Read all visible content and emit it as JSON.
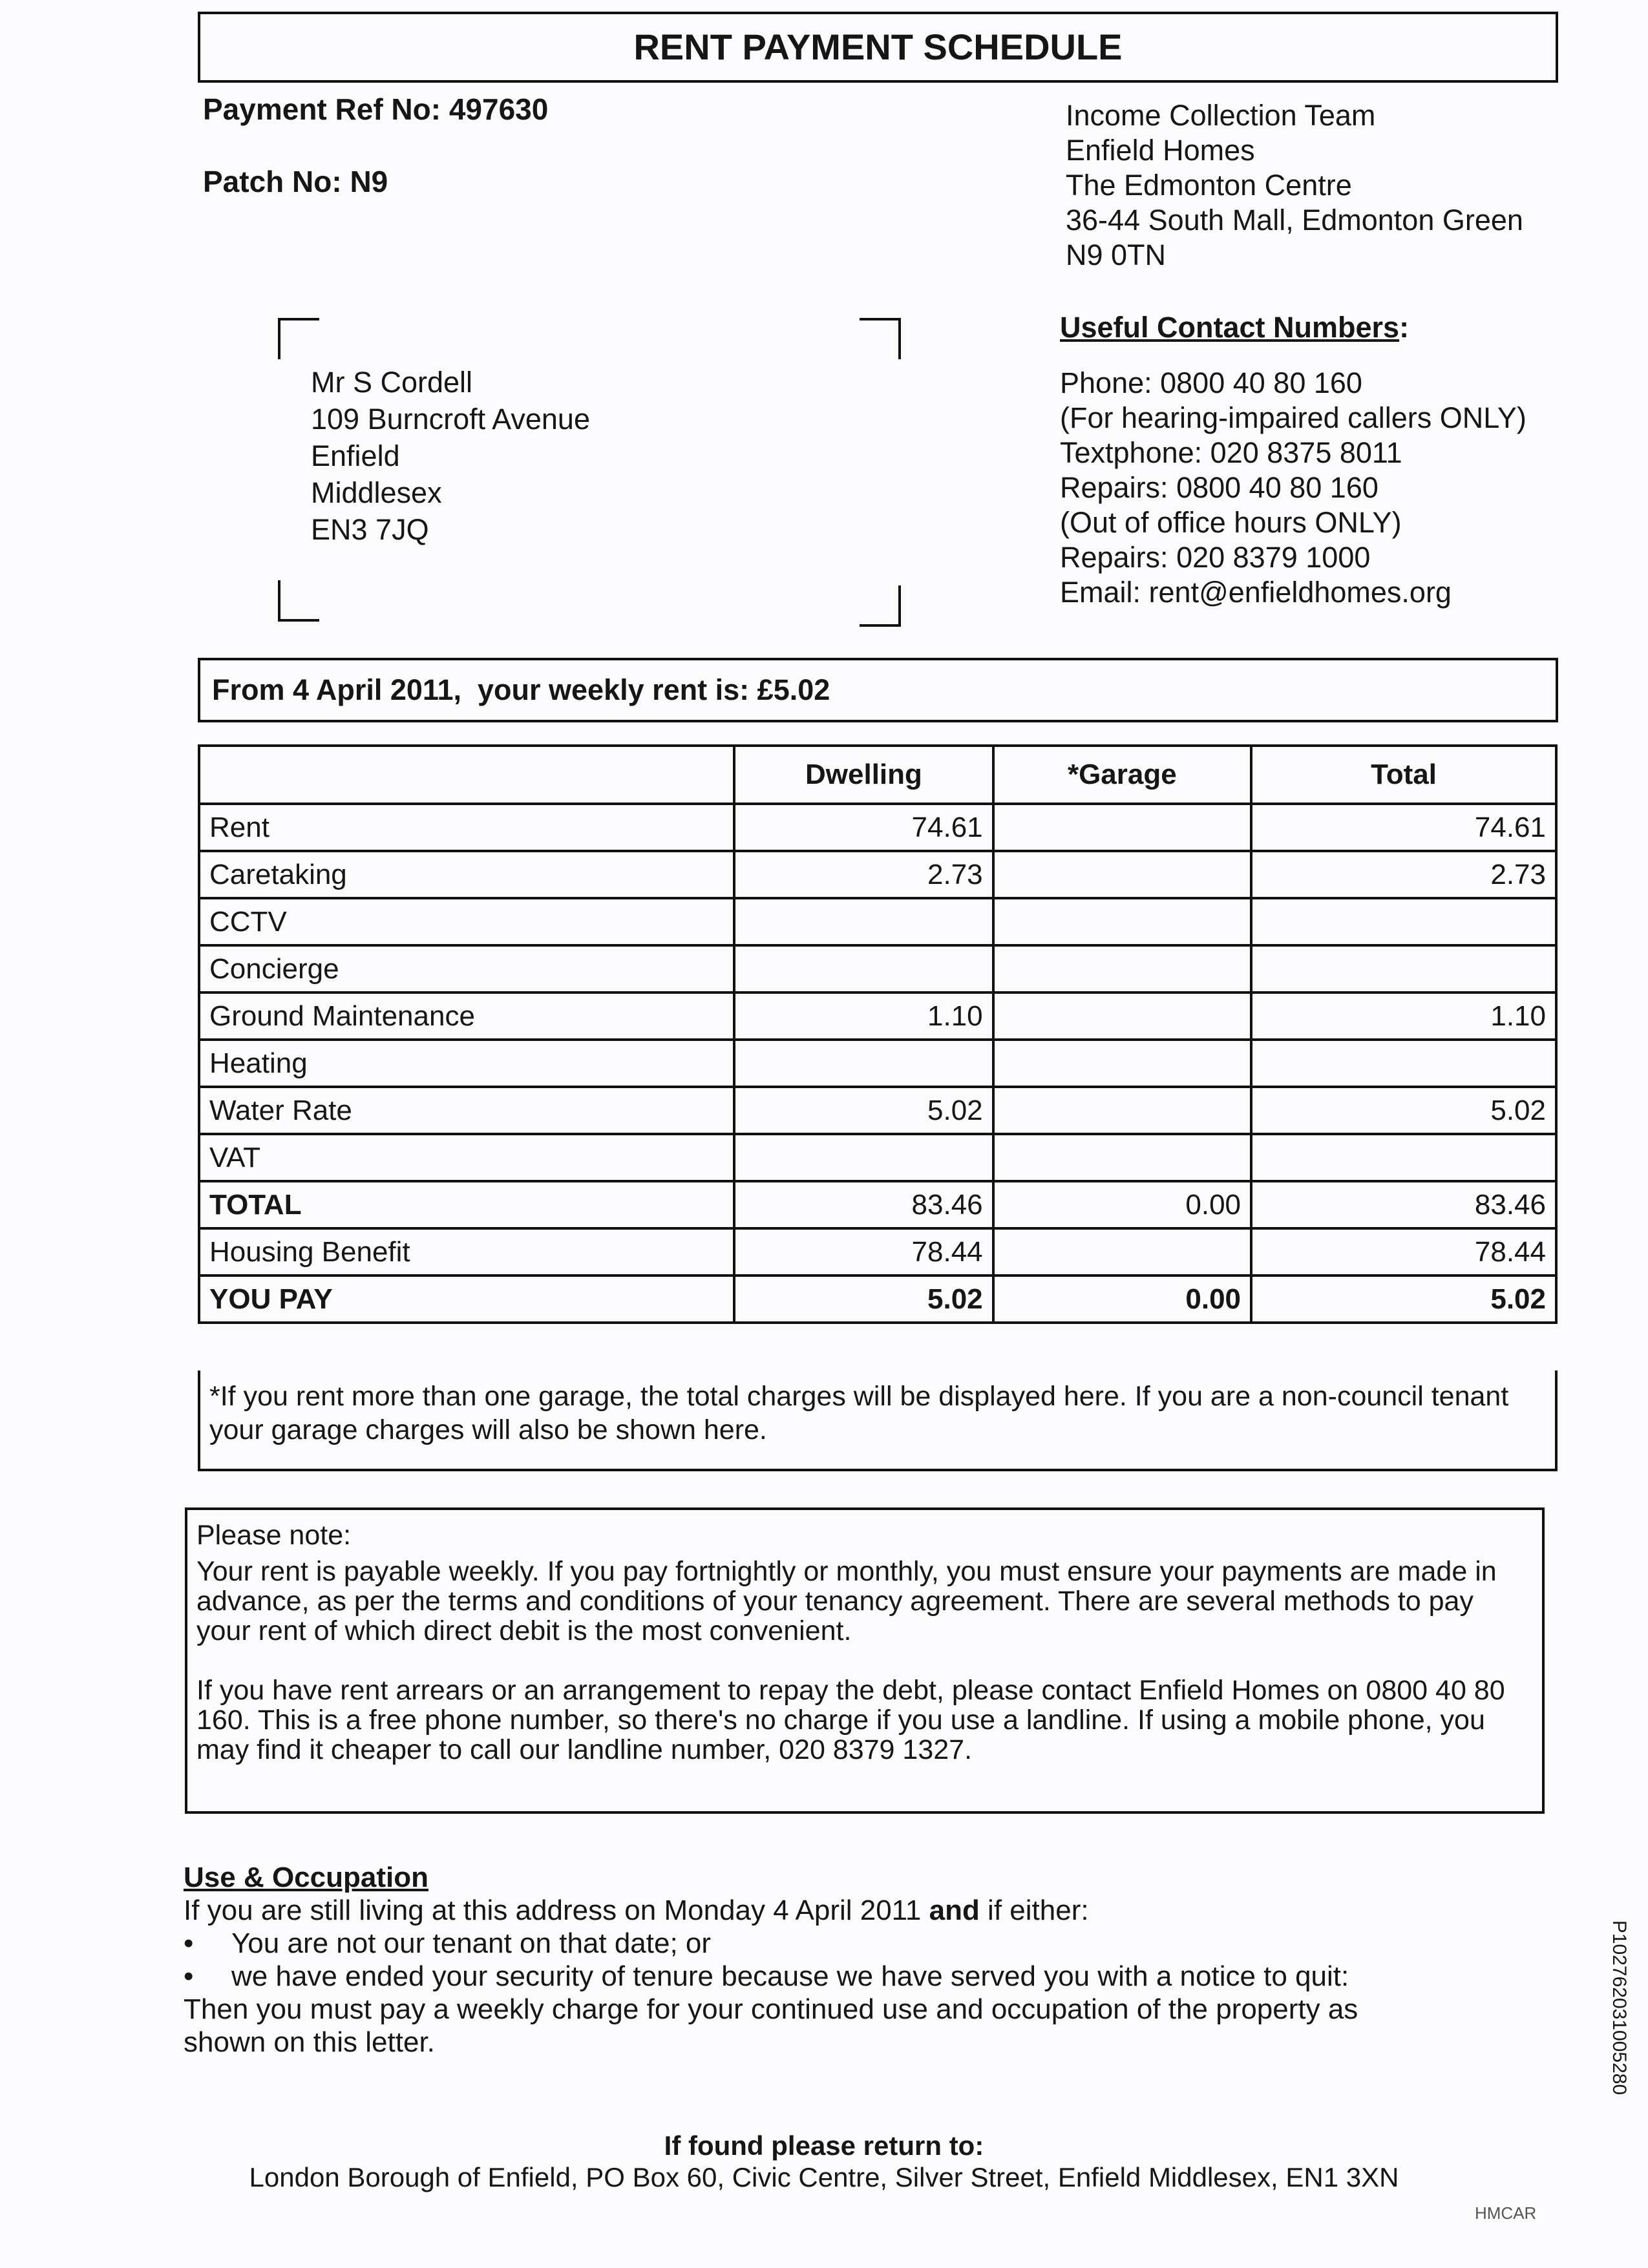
{
  "title": "RENT PAYMENT SCHEDULE",
  "payment_ref": "Payment Ref No: 497630",
  "patch": "Patch No: N9",
  "sender_address": [
    "Income Collection Team",
    "Enfield Homes",
    "The Edmonton Centre",
    "36-44 South Mall, Edmonton Green",
    "N9 0TN"
  ],
  "recipient_address": [
    "Mr S Cordell",
    "109 Burncroft Avenue",
    "Enfield",
    "Middlesex",
    "EN3 7JQ"
  ],
  "contacts": {
    "heading": "Useful Contact Numbers",
    "colon": ":",
    "lines": [
      "Phone: 0800 40 80 160",
      "(For hearing-impaired callers ONLY)",
      "Textphone: 020 8375 8011",
      "Repairs: 0800 40 80 160",
      "(Out of office hours ONLY)",
      "Repairs: 020 8379 1000",
      "Email: rent@enfieldhomes.org"
    ]
  },
  "weekly_rent": "From 4 April 2011,  your weekly rent is: £5.02",
  "table": {
    "headers": [
      "",
      "Dwelling",
      "*Garage",
      "Total"
    ],
    "rows": [
      [
        "Rent",
        "74.61",
        "",
        "74.61"
      ],
      [
        "Caretaking",
        "2.73",
        "",
        "2.73"
      ],
      [
        "CCTV",
        "",
        "",
        ""
      ],
      [
        "Concierge",
        "",
        "",
        ""
      ],
      [
        "Ground Maintenance",
        "1.10",
        "",
        "1.10"
      ],
      [
        "Heating",
        "",
        "",
        ""
      ],
      [
        "Water Rate",
        "5.02",
        "",
        "5.02"
      ],
      [
        "VAT",
        "",
        "",
        ""
      ],
      [
        "TOTAL",
        "83.46",
        "0.00",
        "83.46"
      ],
      [
        "Housing Benefit",
        "78.44",
        "",
        "78.44"
      ],
      [
        "YOU PAY",
        "5.02",
        "0.00",
        "5.02"
      ]
    ],
    "footnote": "*If you rent more than one garage, the total charges will be displayed here. If you are a non-council tenant your garage charges will also be shown here."
  },
  "note": {
    "heading": "Please note:",
    "para1": "Your rent is payable weekly. If you pay fortnightly or monthly, you must ensure your payments are made in advance, as per the terms and conditions of your tenancy agreement. There are several methods to pay your rent of which direct debit is the most convenient.",
    "para2": "If you have rent arrears or an arrangement to repay the debt,  please contact  Enfield Homes on 0800 40 80 160. This is a free phone number, so there's no charge if you use a landline. If using a mobile phone, you may find it cheaper to call our landline number, 020 8379 1327."
  },
  "occupation": {
    "heading": "Use & Occupation",
    "intro_a": "If you are still living at this address on Monday 4 April 2011 ",
    "intro_bold": "and",
    "intro_b": " if either:",
    "bullets": [
      "You are not our tenant on that date; or",
      "we have ended your security of tenure because we have served you with a notice to quit:"
    ],
    "outro": "Then you must pay a weekly charge for your continued use and occupation of the property as shown on this letter."
  },
  "footer": {
    "heading": "If found please return to:",
    "address": "London Borough of Enfield, PO Box 60, Civic Centre, Silver Street, Enfield Middlesex, EN1 3XN"
  },
  "side_code": "P102762031005280",
  "form_code": "HMCAR"
}
